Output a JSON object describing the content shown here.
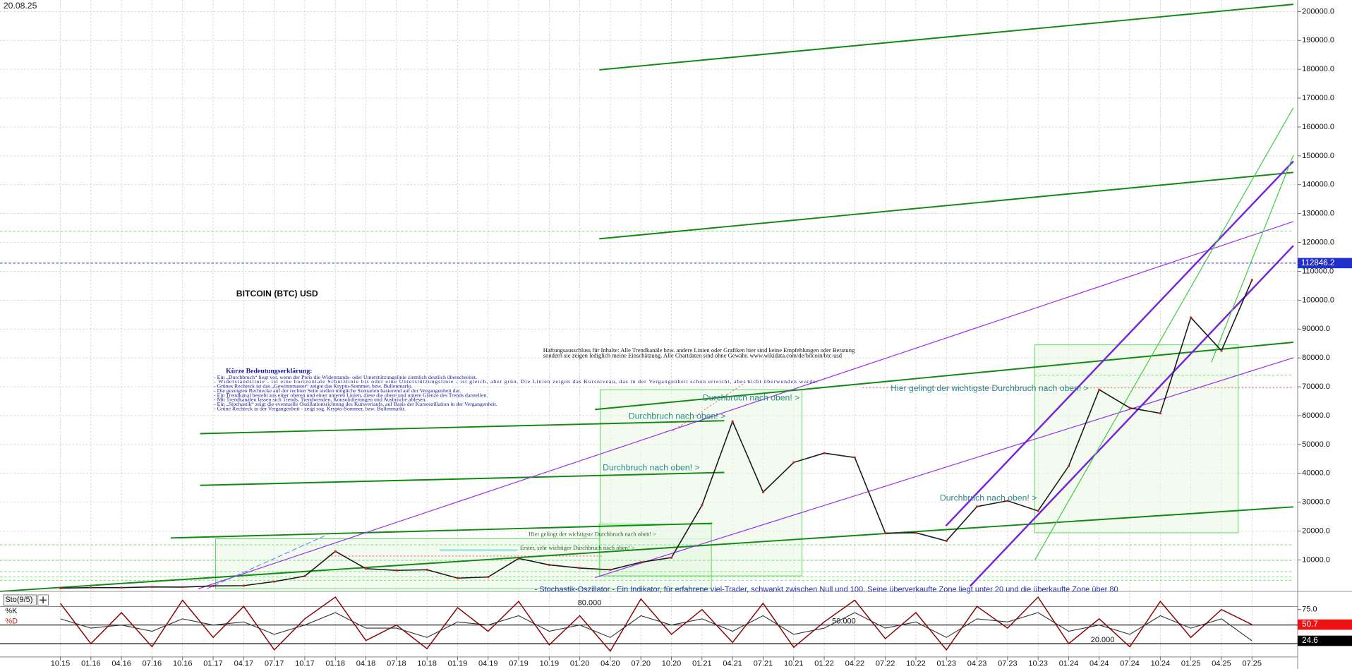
{
  "chart_data": [
    {
      "type": "line",
      "title": "BITCOIN (BTC) USD",
      "date": "20.08.25",
      "categories": [
        "10.15",
        "01.16",
        "04.16",
        "07.16",
        "10.16",
        "01.17",
        "04.17",
        "07.17",
        "10.17",
        "01.18",
        "04.18",
        "07.18",
        "10.18",
        "01.19",
        "04.19",
        "07.19",
        "10.19",
        "01.20",
        "04.20",
        "07.20",
        "10.20",
        "01.21",
        "04.21",
        "07.21",
        "10.21",
        "01.22",
        "04.22",
        "07.22",
        "10.22",
        "01.23",
        "04.23",
        "07.23",
        "10.23",
        "01.24",
        "04.24",
        "07.24",
        "10.24",
        "01.25",
        "04.25",
        "07.25"
      ],
      "values": [
        250,
        430,
        420,
        650,
        610,
        1000,
        1100,
        2500,
        4400,
        13000,
        7000,
        6400,
        6600,
        3700,
        4100,
        10500,
        8300,
        7200,
        6600,
        9200,
        10800,
        29000,
        58000,
        33500,
        43800,
        47000,
        45500,
        19300,
        19400,
        16600,
        28500,
        30500,
        27000,
        42500,
        69000,
        62700,
        60800,
        94000,
        82500,
        107000
      ],
      "color": "#1a1a1a",
      "ylim": [
        0,
        204000
      ],
      "yticks": [
        {
          "value": 10000,
          "label": "10000.0"
        },
        {
          "value": 20000,
          "label": "20000.0"
        },
        {
          "value": 30000,
          "label": "30000.0"
        },
        {
          "value": 40000,
          "label": "40000.0"
        },
        {
          "value": 50000,
          "label": "50000.0"
        },
        {
          "value": 60000,
          "label": "60000.0"
        },
        {
          "value": 70000,
          "label": "70000.0"
        },
        {
          "value": 80000,
          "label": "80000.0"
        },
        {
          "value": 90000,
          "label": "90000.0"
        },
        {
          "value": 100000,
          "label": "100000.0"
        },
        {
          "value": 110000,
          "label": "110000.0"
        },
        {
          "value": 120000,
          "label": "120000.0"
        },
        {
          "value": 130000,
          "label": "130000.0"
        },
        {
          "value": 140000,
          "label": "140000.0"
        },
        {
          "value": 150000,
          "label": "150000.0"
        },
        {
          "value": 160000,
          "label": "160000.0"
        },
        {
          "value": 170000,
          "label": "170000.0"
        },
        {
          "value": 180000,
          "label": "180000.0"
        },
        {
          "value": 190000,
          "label": "190000.0"
        },
        {
          "value": 200000,
          "label": "200000.0"
        }
      ],
      "grid": true,
      "last_price": 112846.2,
      "legend_title": "Kürze Bedeutungserklärung:",
      "legend_lines": [
        "- Ein „Durchbruch“ liegt vor, wenn der Preis die Widerstands- oder Unterstützungslinie ziemlich deutlich überschreitet.",
        "- Widerstandslinie - ist eine horizontale Schutzlinie bis oder eine Unterstützungslinie - ist gleich, aber grün. Die Linien zeigen das Kursniveau, das in der Vergangenheit schon erreicht, aber nicht überwunden wurde.",
        "- Grünes Rechteck ist das „Gewinnmuster“ zeigte das Krypto-Sommer, bzw. Bullenmarkt.",
        "- Die gezeigten Rechtecke auf der rechten Seite stellen mögliche Szenarien basierend auf der Vergangenheit dar.",
        "- Ein Trendkanal besteht aus einer oberen und einer unteren Linien, diese die obere und untere Grenze des Trends darstellen.",
        "- Mit Trendkanälen lassen sich Trends, Trendwenden, Konsolidierungen und Ausbrüche ablesen.",
        "- Ein „Stochastik“ zeigt die eventuelle Oszillationsrichtung des Kursverlaufs, auf Basis der Kursoszillation in der Vergangenheit.",
        "- Grüne Rechteck in der Vergangenheit - zeigt sog. Krypto-Sommer, bzw. Bullenmarkt."
      ],
      "disclaimer": [
        "Haftungsausschluss für Inhalte: Alle Trendkanäle bzw. andere Linien oder Grafiken hier sind keine Empfehlungen oder Beratung",
        "sondern sie zeigen lediglich meine Einschätzung. Alle Chartdaten sind ohne Gewähr. www.wikidata.com/de/bitcoin/btc-usd"
      ],
      "annotations": [
        "Durchbruch nach oben! >",
        "Durchbruch nach oben! >",
        "Durchbruch nach oben! >",
        "Durchbruch nach oben! >",
        "Hier gelingt der wichtigste Durchbruch nach oben! >",
        "Hier gelingt der wichtigste Durchbruch nach oben! >",
        "Erster, sehr wichtiger Durchbruch nach oben! >"
      ]
    },
    {
      "type": "line",
      "title": "Sto(9/5)",
      "note": "- Stochastik-Oszillator - Ein Indikator, für erfahrene viel-Trader, schwankt zwischen Null und 100. Seine überverkaufte Zone liegt unter 20 und die überkaufte Zone über 80",
      "series": [
        {
          "name": "%K",
          "color": "#8b0000",
          "values": [
            85,
            20,
            70,
            15,
            90,
            30,
            80,
            10,
            60,
            95,
            25,
            50,
            12,
            78,
            40,
            88,
            18,
            65,
            8,
            92,
            35,
            75,
            22,
            85,
            14,
            55,
            90,
            28,
            70,
            10,
            80,
            45,
            95,
            20,
            60,
            15,
            88,
            30,
            75,
            50.7
          ]
        },
        {
          "name": "%D",
          "color": "#333333",
          "values": [
            60,
            45,
            50,
            40,
            60,
            50,
            55,
            35,
            50,
            70,
            45,
            45,
            30,
            55,
            50,
            65,
            40,
            50,
            30,
            65,
            50,
            60,
            40,
            65,
            35,
            45,
            70,
            45,
            55,
            30,
            60,
            55,
            70,
            40,
            50,
            35,
            65,
            45,
            60,
            24.6
          ]
        }
      ],
      "ylim": [
        0,
        100
      ],
      "yticks": [
        {
          "value": 75,
          "label": "75.0"
        }
      ],
      "levels": [
        {
          "value": 80,
          "label": "80.000"
        },
        {
          "value": 50,
          "label": "50.000"
        },
        {
          "value": 20,
          "label": "20.000"
        }
      ]
    }
  ]
}
